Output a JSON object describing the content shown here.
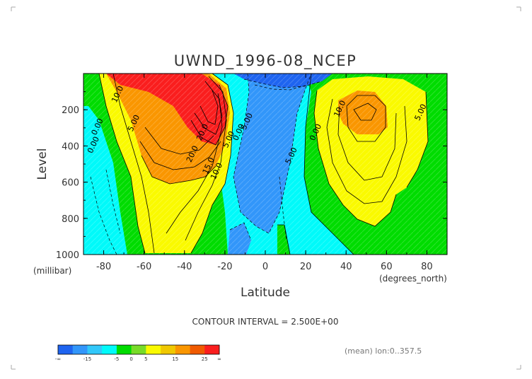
{
  "chart_data": {
    "type": "contour",
    "title": "UWND_1996-08_NCEP",
    "xlabel": "Latitude",
    "ylabel": "Level",
    "x_units": "(degrees_north)",
    "y_units": "(millibar)",
    "x_ticks": [
      -80,
      -60,
      -40,
      -20,
      0,
      20,
      40,
      60,
      80
    ],
    "y_ticks": [
      200,
      400,
      600,
      800,
      1000
    ],
    "xlim": [
      -90,
      90
    ],
    "ylim": [
      1000,
      0
    ],
    "contour_interval_text": "CONTOUR INTERVAL = 2.500E+00",
    "mean_text": "(mean) lon:0..357.5",
    "contour_labels": [
      {
        "text": "10.0",
        "lat": -72,
        "p": 120
      },
      {
        "text": "0.00",
        "lat": -82,
        "p": 300
      },
      {
        "text": "0.00",
        "lat": -84,
        "p": 400
      },
      {
        "text": "5.00",
        "lat": -64,
        "p": 280
      },
      {
        "text": "20.0",
        "lat": -30,
        "p": 330
      },
      {
        "text": "20.0",
        "lat": -35,
        "p": 450
      },
      {
        "text": "15.0",
        "lat": -27,
        "p": 515
      },
      {
        "text": "10.0",
        "lat": -23,
        "p": 545
      },
      {
        "text": "5.00",
        "lat": -17,
        "p": 370
      },
      {
        "text": "0.00",
        "lat": -12,
        "p": 330
      },
      {
        "text": "5.00",
        "lat": -8,
        "p": 270
      },
      {
        "text": "5.00",
        "lat": 14,
        "p": 460
      },
      {
        "text": "10.0",
        "lat": 38,
        "p": 200
      },
      {
        "text": "0.00",
        "lat": 26,
        "p": 330
      },
      {
        "text": "5.00",
        "lat": 78,
        "p": 220
      }
    ],
    "legend": {
      "colors": [
        "#1e64f0",
        "#3296fa",
        "#32c8fa",
        "#00fafa",
        "#00dc00",
        "#78dc28",
        "#fafa00",
        "#f0c800",
        "#fa9600",
        "#f05a00",
        "#fa1e1e"
      ],
      "tick_labels": [
        "-∞",
        "-15",
        "-5",
        "0",
        "5",
        "15",
        "25",
        "∞"
      ]
    }
  }
}
